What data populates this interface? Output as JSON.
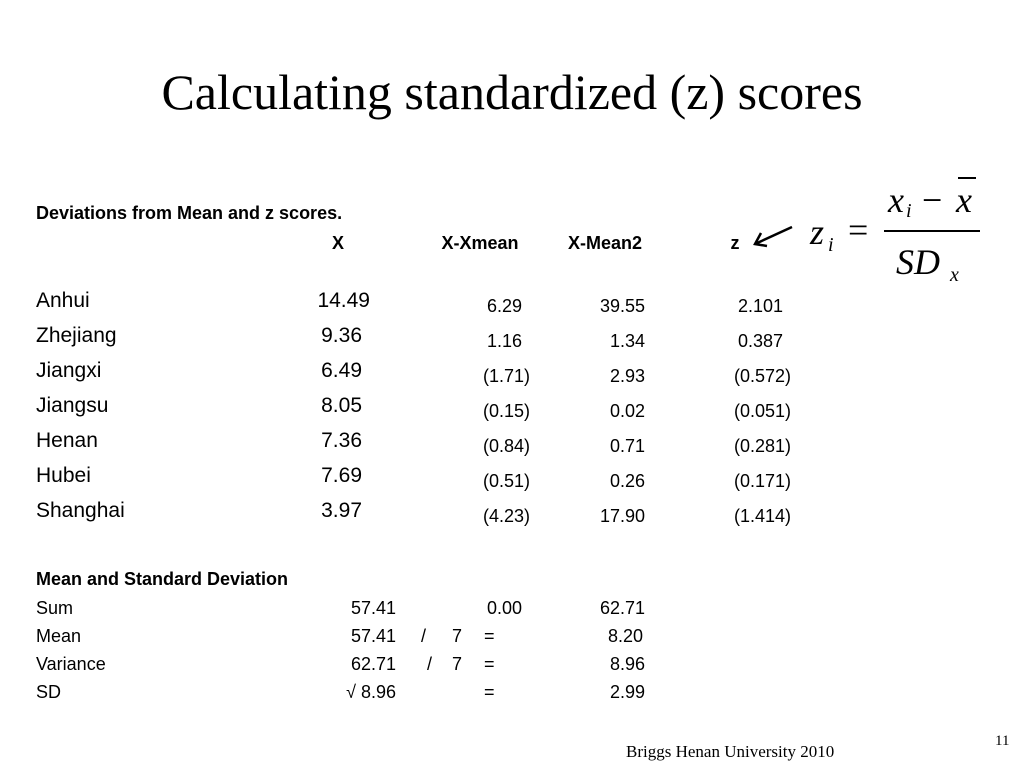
{
  "title": "Calculating standardized (z) scores",
  "table_heading": "Deviations from Mean and z scores.",
  "columns": [
    "X",
    "X-Xmean",
    "X-Mean2",
    "z"
  ],
  "rows": [
    {
      "name": "Anhui",
      "x": "14.49",
      "dev": "6.29",
      "dev2": "39.55",
      "z": "2.101"
    },
    {
      "name": "Zhejiang",
      "x": "9.36",
      "dev": "1.16",
      "dev2": "1.34",
      "z": "0.387"
    },
    {
      "name": "Jiangxi",
      "x": "6.49",
      "dev": "(1.71)",
      "dev2": "2.93",
      "z": "(0.572)"
    },
    {
      "name": "Jiangsu",
      "x": "8.05",
      "dev": "(0.15)",
      "dev2": "0.02",
      "z": "(0.051)"
    },
    {
      "name": "Henan",
      "x": "7.36",
      "dev": "(0.84)",
      "dev2": "0.71",
      "z": "(0.281)"
    },
    {
      "name": "Hubei",
      "x": "7.69",
      "dev": "(0.51)",
      "dev2": "0.26",
      "z": "(0.171)"
    },
    {
      "name": "Shanghai",
      "x": "3.97",
      "dev": "(4.23)",
      "dev2": "17.90",
      "z": "(1.414)"
    }
  ],
  "summary_heading": "Mean and Standard Deviation",
  "summary": {
    "sum": {
      "label": "Sum",
      "x": "57.41",
      "dev": "0.00",
      "dev2": "62.71"
    },
    "mean": {
      "label": "Mean",
      "x": "57.41",
      "slash": "/",
      "n": "7",
      "eq": "=",
      "result": "8.20"
    },
    "variance": {
      "label": "Variance",
      "x": "62.71",
      "slash": "/",
      "n": "7",
      "eq": "=",
      "result": "8.96"
    },
    "sd": {
      "label": "SD",
      "x": "√ 8.96",
      "eq": "=",
      "result": "2.99"
    }
  },
  "formula": {
    "lhs": "z",
    "lhs_sub": "i",
    "eq": "=",
    "num_var": "x",
    "num_sub": "i",
    "minus": "−",
    "num_bar_var": "x",
    "den": "SD",
    "den_sub": "x"
  },
  "arrow_icon": "arrow-pointing-left-down",
  "footer": "Briggs  Henan University 2010",
  "page_number": "11"
}
